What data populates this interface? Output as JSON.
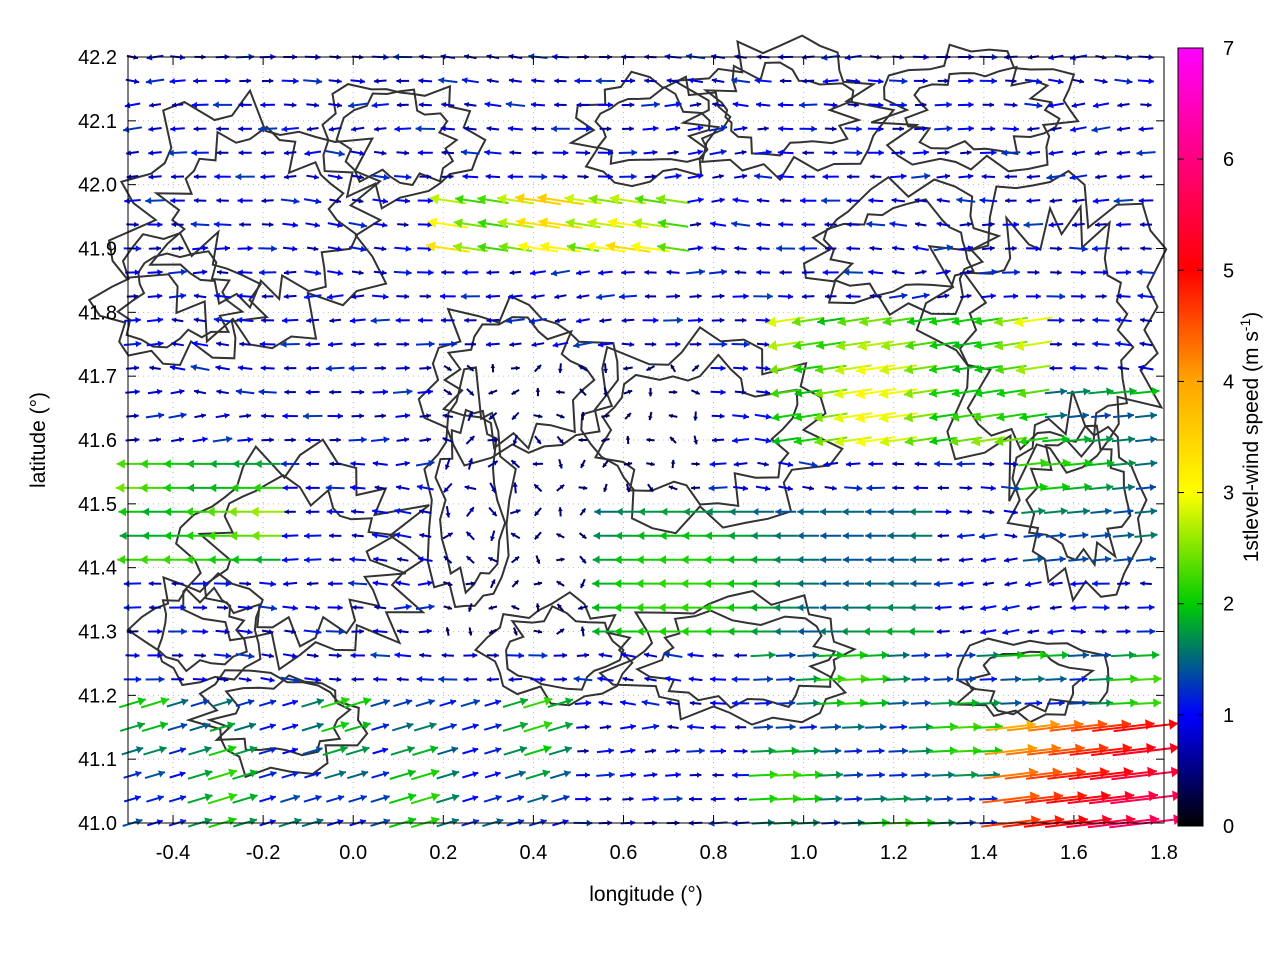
{
  "chart_data": {
    "type": "vector-field",
    "xlabel": "longitude (°)",
    "ylabel": "latitude (°)",
    "xlim": [
      -0.5,
      1.8
    ],
    "ylim": [
      41.0,
      42.2
    ],
    "x_ticks": [
      "-0.4",
      "-0.2",
      "0.0",
      "0.2",
      "0.4",
      "0.6",
      "0.8",
      "1.0",
      "1.2",
      "1.4",
      "1.6",
      "1.8"
    ],
    "y_ticks": [
      "41.0",
      "41.1",
      "41.2",
      "41.3",
      "41.4",
      "41.5",
      "41.6",
      "41.7",
      "41.8",
      "41.9",
      "42.0",
      "42.1",
      "42.2"
    ],
    "grid": "dotted",
    "colorbar": {
      "label": "1stlevel-wind speed (m s-1)",
      "label_main": "1stlevel-wind speed (m s",
      "label_sup": "-1",
      "label_close": ")",
      "range": [
        0,
        7
      ],
      "ticks": [
        "0",
        "1",
        "2",
        "3",
        "4",
        "5",
        "6",
        "7"
      ],
      "colors": [
        "#000000",
        "#0000ff",
        "#00cc00",
        "#ffff00",
        "#ffa500",
        "#ff0000",
        "#ff00ff"
      ]
    },
    "wind_regions": [
      {
        "region": "southeast corner near lon 1.5-1.8, lat 41.0-41.15",
        "direction": "east",
        "speed": 4.8
      },
      {
        "region": "central east near lon 1.0-1.5, lat 41.6-41.8",
        "direction": "west",
        "speed": 2.5
      },
      {
        "region": "west edge near lon -0.5 to -0.2, lat 41.4-41.55",
        "direction": "west",
        "speed": 2.5
      },
      {
        "region": "north near lon 0.2-0.7, lat 41.9-42.0",
        "direction": "west",
        "speed": 3.5
      },
      {
        "region": "center near lon 0.2-0.8, lat 41.3-41.7",
        "direction": "variable",
        "speed": 0.6
      }
    ],
    "contour_color": "#333333"
  }
}
